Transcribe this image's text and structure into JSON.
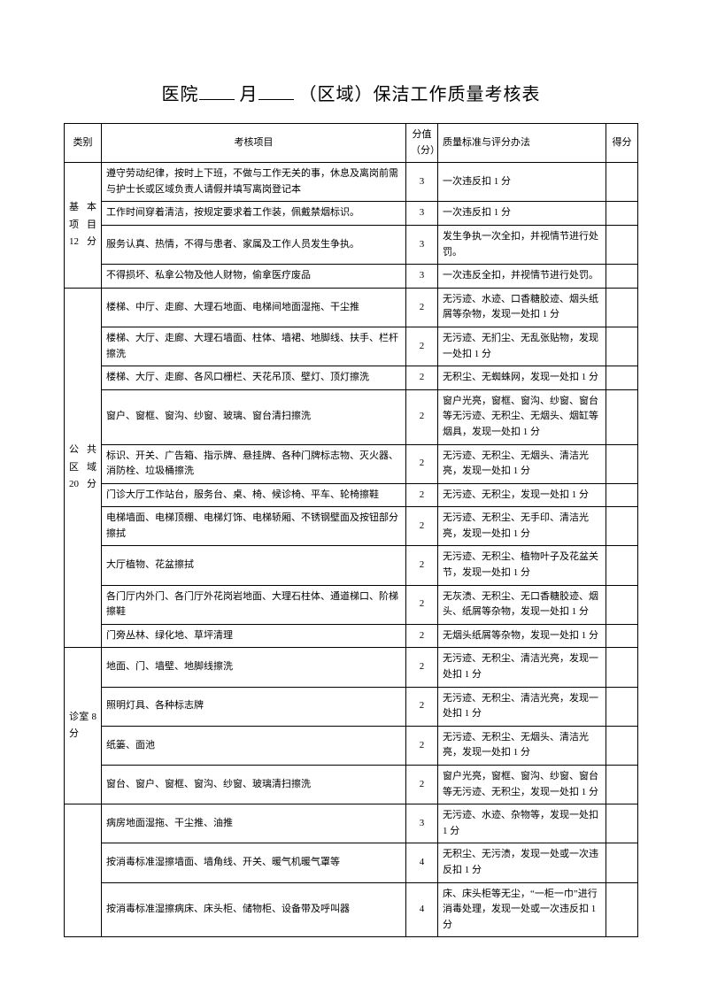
{
  "title_parts": {
    "t1": "医院",
    "t2": "月",
    "t3": "（区域）保洁工作质量考核表"
  },
  "columns": {
    "category": "类别",
    "item": "考核项目",
    "score": "分值（分）",
    "standard": "质量标准与评分办法",
    "got": "得分"
  },
  "sections": [
    {
      "category": "基 本项 目12 分",
      "rows": [
        {
          "item": "遵守劳动纪律，按时上下班，不做与工作无关的事，休息及离岗前需与护士长或区域负责人请假并填写离岗登记本",
          "score": "3",
          "standard": "一次违反扣 1 分"
        },
        {
          "item": "工作时间穿着清洁，按规定要求着工作装，佩戴禁烟标识。",
          "score": "3",
          "standard": "一次违反扣 1 分"
        },
        {
          "item": "服务认真、热情，不得与患者、家属及工作人员发生争执。",
          "score": "3",
          "standard": "发生争执一次全扣，并视情节进行处罚。"
        },
        {
          "item": "不得损坏、私拿公物及他人财物，偷拿医疗废品",
          "score": "3",
          "standard": "一次违反全扣，并视情节进行处罚。"
        }
      ]
    },
    {
      "category": "公 共区 域20 分",
      "rows": [
        {
          "item": "楼梯、中厅、走廊、大理石地面、电梯间地面湿拖、干尘推",
          "score": "2",
          "standard": "无污迹、水迹、口香糖胶迹、烟头纸屑等杂物，发现一处扣 1 分"
        },
        {
          "item": "楼梯、大厅、走廊、大理石墙面、柱体、墙裙、地脚线、扶手、栏杆擦洗",
          "score": "2",
          "standard": "无污迹、无扪尘、无乱张贴物，发现一处扣 1 分"
        },
        {
          "item": "楼梯、大厅、走廊、各风口栅栏、天花吊顶、壁灯、顶灯擦洗",
          "score": "2",
          "standard": "无积尘、无蜘蛛网，发现一处扣 1 分"
        },
        {
          "item": "窗户、窗框、窗沟、纱窗、玻璃、窗台清扫擦洗",
          "score": "2",
          "standard": "窗户光亮，窗框、窗沟、纱窗、窗台等无污迹、无积尘、无烟头、烟缸等烟具，发现一处扣 1 分"
        },
        {
          "item": "标识、开关、广告箱、指示牌、悬挂牌、各种门牌标志物、灭火器、消防栓、垃圾桶擦洗",
          "score": "2",
          "standard": "无污迹、无积尘、无烟头、清洁光亮，发现一处扣 1 分"
        },
        {
          "item": "门诊大厅工作站台，服务台、桌、椅、候诊椅、平车、轮椅擦鞋",
          "score": "2",
          "standard": "无污迹、无积尘，发现一处扣 1 分"
        },
        {
          "item": "电梯墙面、电梯顶棚、电梯灯饰、电梯轿厢、不锈钢壁面及按钮部分擦拭",
          "score": "2",
          "standard": "无污迹、无积尘、无手印、清洁光亮，发现一处扣 1 分"
        },
        {
          "item": "大厅植物、花盆擦拭",
          "score": "2",
          "standard": "无污迹、无积尘、植物叶子及花盆关节，发现一处扣 1 分"
        },
        {
          "item": "各门厅内外门、各门厅外花岗岩地面、大理石柱体、通道梯口、阶梯擦鞋",
          "score": "2",
          "standard": "无灰渍、无积尘、无口香糖胶迹、烟头、纸屑等杂物，发现一处扣 1 分"
        },
        {
          "item": "门旁丛林、绿化地、草坪清理",
          "score": "2",
          "standard": "无烟头纸屑等杂物，发现一处扣 1 分"
        }
      ]
    },
    {
      "category": "诊室 8分",
      "rows": [
        {
          "item": "地面、门、墙壁、地脚线擦洗",
          "score": "2",
          "standard": "无污迹、无积尘、清洁光亮，发现一处扣 1 分"
        },
        {
          "item": "照明灯具、各种标志牌",
          "score": "2",
          "standard": "无污迹、无积尘、清洁光亮，发现一处扣 1 分"
        },
        {
          "item": "纸篓、面池",
          "score": "2",
          "standard": "无污迹、无积尘、无烟头、清洁光亮，发现一处扣 1 分"
        },
        {
          "item": "窗台、窗户、窗框、窗沟、纱窗、玻璃清扫擦洗",
          "score": "2",
          "standard": "窗户光亮，窗框、窗沟、纱窗、窗台等无污迹、无积尘，发现一处扣 1 分"
        }
      ]
    },
    {
      "category": "",
      "rows": [
        {
          "item": "病房地面湿拖、干尘推、油推",
          "score": "3",
          "standard": "无污迹、水迹、杂物等，发现一处扣 1 分"
        },
        {
          "item": "按消毒标准湿擦墙面、墙角线、开关、暖气机暖气罩等",
          "score": "4",
          "standard": "无积尘、无污渍，发现一处或一次违反扣 1 分"
        },
        {
          "item": "按消毒标准湿擦病床、床头柜、储物柜、设备带及呼叫器",
          "score": "4",
          "standard": "床、床头柜等无尘，“一柜一巾”进行消毒处理，发现一处或一次违反扣 1 分"
        }
      ]
    }
  ]
}
